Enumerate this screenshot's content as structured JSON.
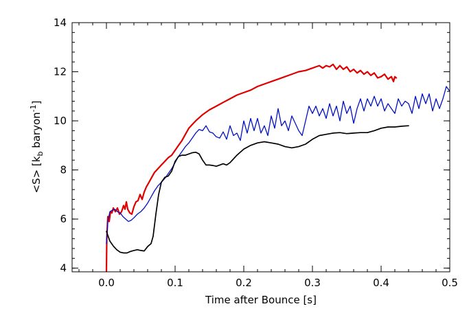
{
  "chart_data": {
    "type": "line",
    "xlabel": "Time after Bounce [s]",
    "ylabel": {
      "prefix": "<S> [k",
      "sub": "b",
      "mid": " baryon",
      "sup": "-1",
      "suffix": "]"
    },
    "xlim": [
      -0.05,
      0.5
    ],
    "ylim": [
      3.85,
      14
    ],
    "x_major_ticks": [
      0.0,
      0.1,
      0.2,
      0.3,
      0.4,
      0.5
    ],
    "x_tick_labels": [
      "0.0",
      "0.1",
      "0.2",
      "0.3",
      "0.4",
      "0.5"
    ],
    "x_minor_step": 0.02,
    "y_major_ticks": [
      4,
      6,
      8,
      10,
      12,
      14
    ],
    "y_tick_labels": [
      "4",
      "6",
      "8",
      "10",
      "12",
      "14"
    ],
    "y_minor_step": 0.4,
    "grid": false,
    "legend": false,
    "series": [
      {
        "color": "#e00000",
        "width": 2.2,
        "points": [
          [
            0.0,
            3.85
          ],
          [
            0.0005,
            5.2
          ],
          [
            0.002,
            6.1
          ],
          [
            0.004,
            5.9
          ],
          [
            0.006,
            6.3
          ],
          [
            0.008,
            6.25
          ],
          [
            0.01,
            6.45
          ],
          [
            0.013,
            6.3
          ],
          [
            0.016,
            6.45
          ],
          [
            0.019,
            6.2
          ],
          [
            0.022,
            6.3
          ],
          [
            0.025,
            6.55
          ],
          [
            0.027,
            6.4
          ],
          [
            0.029,
            6.7
          ],
          [
            0.031,
            6.4
          ],
          [
            0.034,
            6.25
          ],
          [
            0.037,
            6.2
          ],
          [
            0.04,
            6.5
          ],
          [
            0.043,
            6.7
          ],
          [
            0.046,
            6.75
          ],
          [
            0.049,
            7.0
          ],
          [
            0.052,
            6.8
          ],
          [
            0.055,
            7.1
          ],
          [
            0.058,
            7.3
          ],
          [
            0.062,
            7.5
          ],
          [
            0.066,
            7.7
          ],
          [
            0.07,
            7.9
          ],
          [
            0.075,
            8.05
          ],
          [
            0.08,
            8.2
          ],
          [
            0.085,
            8.35
          ],
          [
            0.09,
            8.5
          ],
          [
            0.095,
            8.6
          ],
          [
            0.1,
            8.8
          ],
          [
            0.105,
            9.0
          ],
          [
            0.11,
            9.2
          ],
          [
            0.115,
            9.45
          ],
          [
            0.12,
            9.7
          ],
          [
            0.125,
            9.85
          ],
          [
            0.13,
            10.0
          ],
          [
            0.14,
            10.25
          ],
          [
            0.15,
            10.45
          ],
          [
            0.16,
            10.6
          ],
          [
            0.17,
            10.75
          ],
          [
            0.18,
            10.9
          ],
          [
            0.19,
            11.05
          ],
          [
            0.2,
            11.15
          ],
          [
            0.21,
            11.25
          ],
          [
            0.22,
            11.4
          ],
          [
            0.23,
            11.5
          ],
          [
            0.24,
            11.6
          ],
          [
            0.25,
            11.7
          ],
          [
            0.26,
            11.8
          ],
          [
            0.27,
            11.9
          ],
          [
            0.28,
            12.0
          ],
          [
            0.29,
            12.05
          ],
          [
            0.3,
            12.15
          ],
          [
            0.305,
            12.2
          ],
          [
            0.31,
            12.25
          ],
          [
            0.315,
            12.15
          ],
          [
            0.32,
            12.25
          ],
          [
            0.325,
            12.2
          ],
          [
            0.33,
            12.3
          ],
          [
            0.335,
            12.1
          ],
          [
            0.34,
            12.25
          ],
          [
            0.345,
            12.1
          ],
          [
            0.35,
            12.2
          ],
          [
            0.355,
            12.0
          ],
          [
            0.36,
            12.1
          ],
          [
            0.365,
            11.95
          ],
          [
            0.37,
            12.05
          ],
          [
            0.375,
            11.9
          ],
          [
            0.38,
            12.0
          ],
          [
            0.385,
            11.85
          ],
          [
            0.39,
            11.95
          ],
          [
            0.395,
            11.75
          ],
          [
            0.4,
            11.8
          ],
          [
            0.405,
            11.9
          ],
          [
            0.41,
            11.7
          ],
          [
            0.415,
            11.8
          ],
          [
            0.418,
            11.6
          ],
          [
            0.42,
            11.8
          ],
          [
            0.422,
            11.75
          ]
        ]
      },
      {
        "color": "#0010c0",
        "width": 1.3,
        "points": [
          [
            0.0,
            5.0
          ],
          [
            0.002,
            5.9
          ],
          [
            0.005,
            6.3
          ],
          [
            0.008,
            6.35
          ],
          [
            0.012,
            6.4
          ],
          [
            0.016,
            6.3
          ],
          [
            0.02,
            6.25
          ],
          [
            0.024,
            6.1
          ],
          [
            0.028,
            6.0
          ],
          [
            0.032,
            5.9
          ],
          [
            0.036,
            5.95
          ],
          [
            0.04,
            6.05
          ],
          [
            0.045,
            6.2
          ],
          [
            0.05,
            6.3
          ],
          [
            0.055,
            6.45
          ],
          [
            0.06,
            6.65
          ],
          [
            0.065,
            6.9
          ],
          [
            0.07,
            7.15
          ],
          [
            0.075,
            7.35
          ],
          [
            0.08,
            7.5
          ],
          [
            0.085,
            7.65
          ],
          [
            0.09,
            7.85
          ],
          [
            0.095,
            8.05
          ],
          [
            0.1,
            8.3
          ],
          [
            0.105,
            8.55
          ],
          [
            0.11,
            8.75
          ],
          [
            0.115,
            8.95
          ],
          [
            0.12,
            9.1
          ],
          [
            0.125,
            9.3
          ],
          [
            0.13,
            9.5
          ],
          [
            0.135,
            9.65
          ],
          [
            0.14,
            9.6
          ],
          [
            0.145,
            9.8
          ],
          [
            0.15,
            9.55
          ],
          [
            0.155,
            9.5
          ],
          [
            0.16,
            9.35
          ],
          [
            0.165,
            9.3
          ],
          [
            0.17,
            9.55
          ],
          [
            0.175,
            9.25
          ],
          [
            0.18,
            9.8
          ],
          [
            0.185,
            9.4
          ],
          [
            0.19,
            9.5
          ],
          [
            0.195,
            9.2
          ],
          [
            0.2,
            10.0
          ],
          [
            0.205,
            9.5
          ],
          [
            0.21,
            10.1
          ],
          [
            0.215,
            9.6
          ],
          [
            0.22,
            10.1
          ],
          [
            0.225,
            9.5
          ],
          [
            0.23,
            9.8
          ],
          [
            0.235,
            9.4
          ],
          [
            0.24,
            10.2
          ],
          [
            0.245,
            9.7
          ],
          [
            0.25,
            10.5
          ],
          [
            0.255,
            9.8
          ],
          [
            0.26,
            10.0
          ],
          [
            0.265,
            9.6
          ],
          [
            0.27,
            10.2
          ],
          [
            0.275,
            9.9
          ],
          [
            0.28,
            9.6
          ],
          [
            0.285,
            9.4
          ],
          [
            0.29,
            10.0
          ],
          [
            0.295,
            10.6
          ],
          [
            0.3,
            10.3
          ],
          [
            0.305,
            10.6
          ],
          [
            0.31,
            10.2
          ],
          [
            0.315,
            10.5
          ],
          [
            0.32,
            10.1
          ],
          [
            0.325,
            10.7
          ],
          [
            0.33,
            10.2
          ],
          [
            0.335,
            10.6
          ],
          [
            0.34,
            10.0
          ],
          [
            0.345,
            10.8
          ],
          [
            0.35,
            10.3
          ],
          [
            0.355,
            10.6
          ],
          [
            0.36,
            9.9
          ],
          [
            0.365,
            10.5
          ],
          [
            0.37,
            10.9
          ],
          [
            0.375,
            10.4
          ],
          [
            0.38,
            10.9
          ],
          [
            0.385,
            10.6
          ],
          [
            0.39,
            11.0
          ],
          [
            0.395,
            10.6
          ],
          [
            0.4,
            10.9
          ],
          [
            0.405,
            10.4
          ],
          [
            0.41,
            10.7
          ],
          [
            0.415,
            10.5
          ],
          [
            0.42,
            10.3
          ],
          [
            0.425,
            10.9
          ],
          [
            0.43,
            10.6
          ],
          [
            0.435,
            10.8
          ],
          [
            0.44,
            10.7
          ],
          [
            0.445,
            10.3
          ],
          [
            0.45,
            11.0
          ],
          [
            0.455,
            10.5
          ],
          [
            0.46,
            11.1
          ],
          [
            0.465,
            10.7
          ],
          [
            0.47,
            11.1
          ],
          [
            0.475,
            10.4
          ],
          [
            0.48,
            10.9
          ],
          [
            0.485,
            10.5
          ],
          [
            0.49,
            10.9
          ],
          [
            0.495,
            11.4
          ],
          [
            0.5,
            11.2
          ]
        ]
      },
      {
        "color": "#000000",
        "width": 1.7,
        "points": [
          [
            0.0,
            5.5
          ],
          [
            0.005,
            5.1
          ],
          [
            0.01,
            4.9
          ],
          [
            0.015,
            4.75
          ],
          [
            0.02,
            4.65
          ],
          [
            0.025,
            4.62
          ],
          [
            0.03,
            4.62
          ],
          [
            0.035,
            4.68
          ],
          [
            0.04,
            4.72
          ],
          [
            0.045,
            4.75
          ],
          [
            0.05,
            4.72
          ],
          [
            0.055,
            4.7
          ],
          [
            0.06,
            4.88
          ],
          [
            0.065,
            5.0
          ],
          [
            0.068,
            5.3
          ],
          [
            0.072,
            6.2
          ],
          [
            0.076,
            7.0
          ],
          [
            0.08,
            7.5
          ],
          [
            0.085,
            7.7
          ],
          [
            0.09,
            7.75
          ],
          [
            0.095,
            7.95
          ],
          [
            0.1,
            8.35
          ],
          [
            0.105,
            8.55
          ],
          [
            0.11,
            8.6
          ],
          [
            0.115,
            8.6
          ],
          [
            0.12,
            8.65
          ],
          [
            0.125,
            8.7
          ],
          [
            0.13,
            8.72
          ],
          [
            0.135,
            8.65
          ],
          [
            0.14,
            8.4
          ],
          [
            0.145,
            8.2
          ],
          [
            0.15,
            8.2
          ],
          [
            0.155,
            8.18
          ],
          [
            0.16,
            8.15
          ],
          [
            0.165,
            8.2
          ],
          [
            0.17,
            8.25
          ],
          [
            0.175,
            8.2
          ],
          [
            0.18,
            8.3
          ],
          [
            0.185,
            8.45
          ],
          [
            0.19,
            8.6
          ],
          [
            0.2,
            8.85
          ],
          [
            0.21,
            9.0
          ],
          [
            0.22,
            9.1
          ],
          [
            0.23,
            9.15
          ],
          [
            0.24,
            9.1
          ],
          [
            0.25,
            9.05
          ],
          [
            0.26,
            8.95
          ],
          [
            0.27,
            8.9
          ],
          [
            0.28,
            8.95
          ],
          [
            0.29,
            9.05
          ],
          [
            0.3,
            9.25
          ],
          [
            0.31,
            9.4
          ],
          [
            0.32,
            9.45
          ],
          [
            0.33,
            9.5
          ],
          [
            0.34,
            9.52
          ],
          [
            0.35,
            9.48
          ],
          [
            0.36,
            9.5
          ],
          [
            0.37,
            9.52
          ],
          [
            0.38,
            9.52
          ],
          [
            0.39,
            9.6
          ],
          [
            0.4,
            9.7
          ],
          [
            0.41,
            9.75
          ],
          [
            0.42,
            9.75
          ],
          [
            0.43,
            9.78
          ],
          [
            0.44,
            9.8
          ]
        ]
      }
    ]
  }
}
